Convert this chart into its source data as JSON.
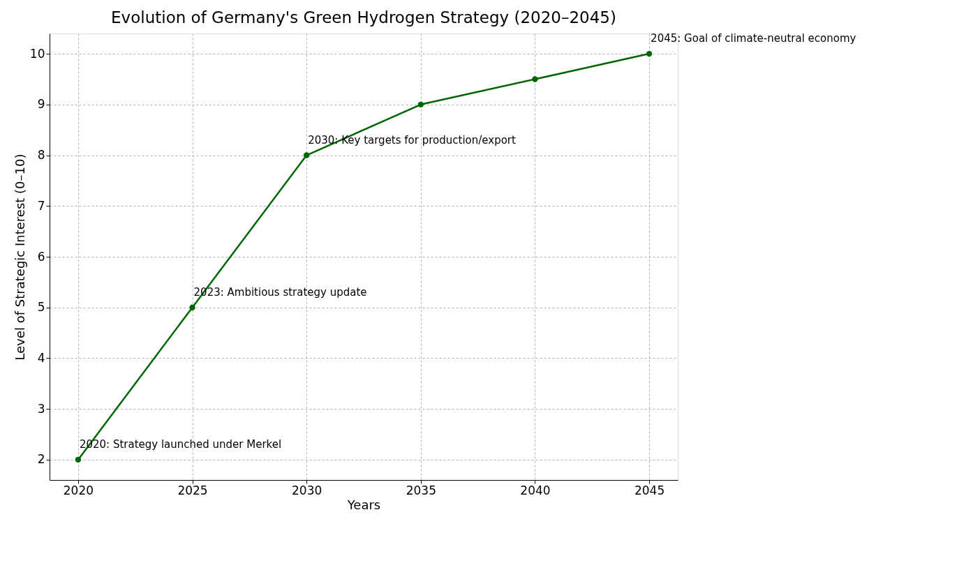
{
  "chart_data": {
    "type": "line",
    "title": "Evolution of Germany's Green Hydrogen Strategy (2020–2045)",
    "xlabel": "Years",
    "ylabel": "Level of Strategic Interest (0–10)",
    "x": [
      2020,
      2025,
      2030,
      2035,
      2040,
      2045
    ],
    "series": [
      {
        "color": "#006400",
        "values": [
          2,
          5,
          8,
          9,
          9.5,
          10
        ]
      }
    ],
    "xlim": [
      2018.75,
      2046.25
    ],
    "xticks": [
      2020,
      2025,
      2030,
      2035,
      2040,
      2045
    ],
    "ylim": [
      1.6,
      10.4
    ],
    "yticks": [
      2,
      3,
      4,
      5,
      6,
      7,
      8,
      9,
      10
    ],
    "grid": true,
    "marker": "circle",
    "line_style": "solid",
    "annotations": [
      {
        "text": "2020: Strategy launched under Merkel",
        "x": 2020,
        "y": 2
      },
      {
        "text": "2023: Ambitious strategy update",
        "x": 2025,
        "y": 5
      },
      {
        "text": "2030: Key targets for production/export",
        "x": 2030,
        "y": 8
      },
      {
        "text": "2045: Goal of climate-neutral economy",
        "x": 2045,
        "y": 10
      }
    ]
  }
}
